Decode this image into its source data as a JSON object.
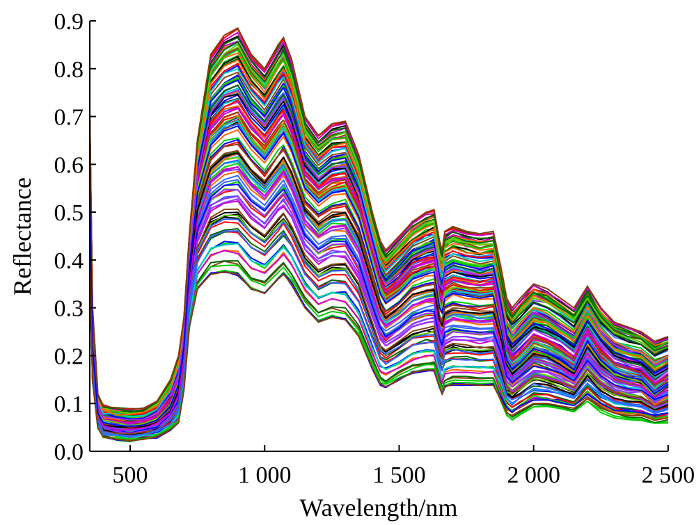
{
  "chart_data": {
    "type": "line",
    "title": "",
    "xlabel": "Wavelength/nm",
    "ylabel": "Reflectance",
    "xlim": [
      350,
      2500
    ],
    "ylim": [
      0.0,
      0.9
    ],
    "x_ticks": [
      500,
      1000,
      1500,
      2000,
      2500
    ],
    "x_tick_labels": [
      "500",
      "1 000",
      "1 500",
      "2 000",
      "2 500"
    ],
    "y_ticks": [
      0.0,
      0.1,
      0.2,
      0.3,
      0.4,
      0.5,
      0.6,
      0.7,
      0.8,
      0.9
    ],
    "y_tick_labels": [
      "0.0",
      "0.1",
      "0.2",
      "0.3",
      "0.4",
      "0.5",
      "0.6",
      "0.7",
      "0.8",
      "0.9"
    ],
    "grid": false,
    "legend": "none",
    "series_count": 120,
    "series_colors": [
      "#0000ff",
      "#ff0000",
      "#00cc00",
      "#000000",
      "#00cccc",
      "#cc00cc",
      "#8b4513",
      "#66cc00",
      "#3366ff",
      "#ff6600",
      "#9933ff",
      "#006600"
    ],
    "x": [
      350,
      360,
      380,
      400,
      450,
      500,
      550,
      600,
      650,
      680,
      700,
      720,
      750,
      800,
      850,
      900,
      950,
      1000,
      1050,
      1070,
      1100,
      1150,
      1200,
      1250,
      1300,
      1350,
      1400,
      1430,
      1450,
      1500,
      1550,
      1600,
      1630,
      1650,
      1660,
      1670,
      1700,
      1750,
      1800,
      1850,
      1880,
      1900,
      1920,
      1950,
      2000,
      2050,
      2100,
      2150,
      2200,
      2250,
      2300,
      2350,
      2400,
      2450,
      2500
    ],
    "representative_series": [
      {
        "values": [
          0.71,
          0.3,
          0.12,
          0.095,
          0.09,
          0.088,
          0.09,
          0.105,
          0.15,
          0.2,
          0.28,
          0.45,
          0.65,
          0.83,
          0.87,
          0.885,
          0.83,
          0.8,
          0.85,
          0.865,
          0.82,
          0.7,
          0.66,
          0.685,
          0.69,
          0.62,
          0.5,
          0.44,
          0.42,
          0.45,
          0.48,
          0.5,
          0.505,
          0.44,
          0.42,
          0.46,
          0.47,
          0.46,
          0.455,
          0.46,
          0.38,
          0.32,
          0.3,
          0.32,
          0.35,
          0.34,
          0.32,
          0.3,
          0.345,
          0.3,
          0.27,
          0.26,
          0.25,
          0.23,
          0.24
        ]
      },
      {
        "values": [
          0.54,
          0.22,
          0.08,
          0.06,
          0.055,
          0.052,
          0.055,
          0.065,
          0.095,
          0.14,
          0.22,
          0.38,
          0.54,
          0.64,
          0.67,
          0.68,
          0.64,
          0.61,
          0.65,
          0.665,
          0.63,
          0.55,
          0.52,
          0.54,
          0.545,
          0.49,
          0.39,
          0.33,
          0.31,
          0.33,
          0.36,
          0.37,
          0.375,
          0.3,
          0.29,
          0.32,
          0.33,
          0.325,
          0.32,
          0.325,
          0.25,
          0.19,
          0.17,
          0.185,
          0.215,
          0.205,
          0.19,
          0.17,
          0.23,
          0.19,
          0.165,
          0.155,
          0.15,
          0.12,
          0.14
        ]
      },
      {
        "values": [
          0.41,
          0.15,
          0.05,
          0.03,
          0.025,
          0.022,
          0.025,
          0.03,
          0.045,
          0.06,
          0.13,
          0.26,
          0.34,
          0.37,
          0.375,
          0.37,
          0.34,
          0.33,
          0.36,
          0.37,
          0.35,
          0.3,
          0.27,
          0.28,
          0.275,
          0.24,
          0.175,
          0.14,
          0.135,
          0.15,
          0.165,
          0.17,
          0.17,
          0.135,
          0.12,
          0.135,
          0.14,
          0.14,
          0.138,
          0.138,
          0.105,
          0.08,
          0.075,
          0.085,
          0.1,
          0.1,
          0.095,
          0.09,
          0.11,
          0.09,
          0.08,
          0.075,
          0.075,
          0.065,
          0.07
        ]
      }
    ]
  }
}
